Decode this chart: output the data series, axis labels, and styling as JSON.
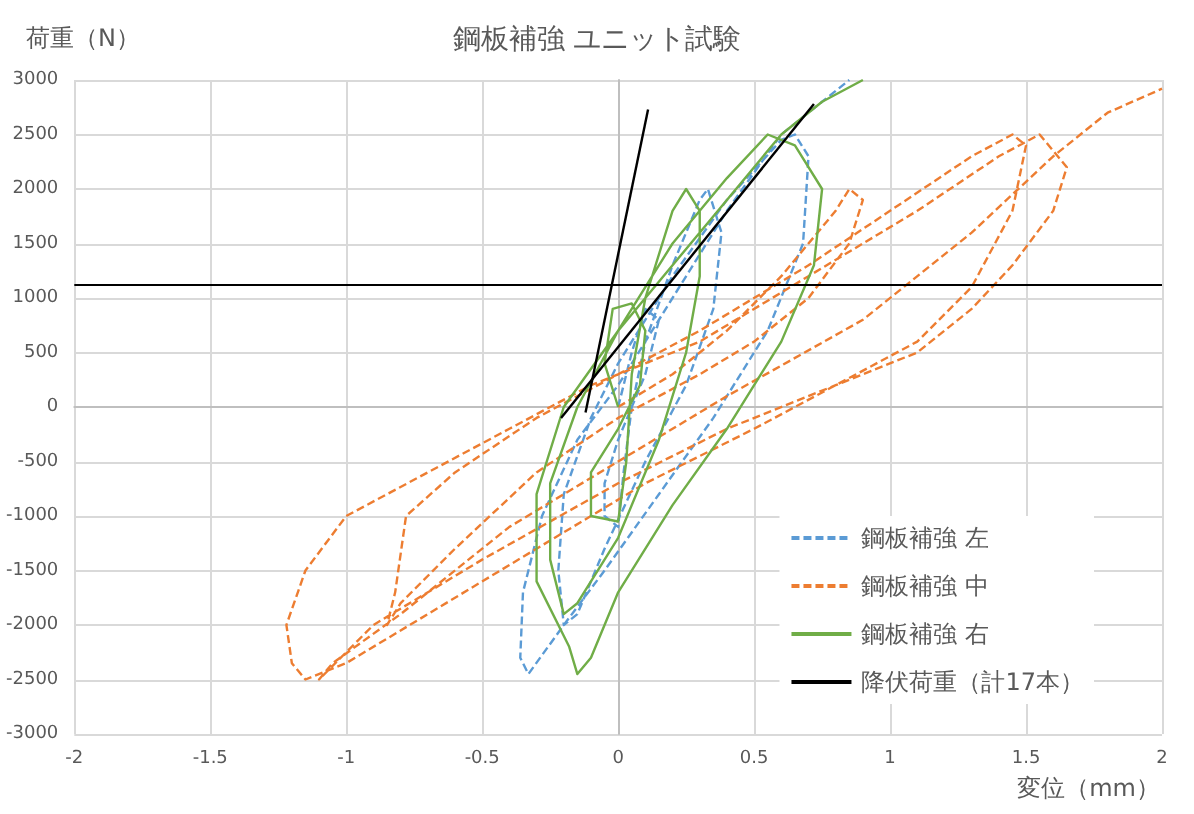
{
  "chart_data": {
    "type": "line",
    "title": "鋼板補強 ユニット試験",
    "xlabel": "変位（mm）",
    "ylabel": "荷重（N）",
    "xlim": [
      -2,
      2
    ],
    "xticks": [
      -2,
      -1.5,
      -1,
      -0.5,
      0,
      0.5,
      1,
      1.5,
      2
    ],
    "ylim": [
      -3000,
      3000
    ],
    "yticks": [
      -3000,
      -2500,
      -2000,
      -1500,
      -1000,
      -500,
      0,
      500,
      1000,
      1500,
      2000,
      2500,
      3000
    ],
    "grid": true,
    "legend": "bottom right",
    "marker": "none",
    "ref_lines": [
      {
        "axis": "y",
        "value": 1120,
        "color": "#000000"
      }
    ],
    "series": [
      {
        "name": "鋼板補強 左",
        "color": "#5b9bd5",
        "line_style": "dashed",
        "x": [
          0,
          0.05,
          0.1,
          0.15,
          0.1,
          0.0,
          -0.05,
          -0.05,
          0,
          0.02,
          0.05,
          0.1,
          0.2,
          0.3,
          0.33,
          0.38,
          0.35,
          0.25,
          0.1,
          -0.05,
          -0.15,
          -0.2,
          -0.22,
          -0.2,
          -0.1,
          0,
          0.2,
          0.4,
          0.6,
          0.65,
          0.7,
          0.68,
          0.55,
          0.35,
          0.15,
          -0.05,
          -0.2,
          -0.33,
          -0.36,
          -0.35,
          -0.28,
          -0.15,
          0,
          0.2,
          0.4,
          0.6,
          0.75,
          0.85
        ],
        "values": [
          0,
          500,
          900,
          800,
          300,
          -300,
          -700,
          -1000,
          -1100,
          -600,
          0,
          600,
          1300,
          1900,
          2000,
          1600,
          900,
          200,
          -500,
          -1300,
          -1900,
          -2000,
          -1500,
          -800,
          -100,
          400,
          1200,
          1900,
          2450,
          2500,
          2300,
          1500,
          700,
          -100,
          -800,
          -1500,
          -2000,
          -2450,
          -2300,
          -1700,
          -1000,
          -300,
          200,
          1000,
          1800,
          2500,
          2800,
          3000
        ]
      },
      {
        "name": "鋼板補強 中",
        "color": "#ed7d31",
        "line_style": "dashed",
        "x": [
          0,
          0.2,
          0.4,
          0.6,
          0.8,
          0.85,
          0.9,
          0.85,
          0.7,
          0.5,
          0.3,
          0,
          -0.3,
          -0.6,
          -0.8,
          -0.85,
          -0.82,
          -0.78,
          -0.6,
          -0.3,
          0,
          0.3,
          0.7,
          1.0,
          1.3,
          1.45,
          1.5,
          1.45,
          1.3,
          1.1,
          0.8,
          0.5,
          0.1,
          -0.3,
          -0.7,
          -1.0,
          -1.15,
          -1.2,
          -1.22,
          -1.15,
          -1.0,
          -0.7,
          -0.4,
          -0.1,
          0.3,
          0.7,
          1.1,
          1.4,
          1.55,
          1.65,
          1.6,
          1.45,
          1.3,
          1.1,
          0.8,
          0.4,
          0,
          -0.5,
          -0.9,
          -1.1,
          -1.05,
          -0.8,
          -0.4,
          0,
          0.4,
          0.9,
          1.3,
          1.6,
          1.8,
          2.0
        ],
        "values": [
          0,
          300,
          700,
          1200,
          1800,
          2000,
          1900,
          1500,
          1000,
          600,
          300,
          -100,
          -600,
          -1300,
          -1800,
          -2000,
          -1700,
          -1000,
          -600,
          -100,
          300,
          700,
          1300,
          1800,
          2300,
          2500,
          2400,
          1800,
          1100,
          600,
          200,
          -200,
          -700,
          -1300,
          -1900,
          -2350,
          -2500,
          -2350,
          -2000,
          -1500,
          -1000,
          -600,
          -200,
          200,
          600,
          1200,
          1800,
          2300,
          2500,
          2200,
          1800,
          1300,
          900,
          500,
          200,
          -200,
          -700,
          -1400,
          -2000,
          -2500,
          -2350,
          -1900,
          -1100,
          -500,
          100,
          800,
          1600,
          2300,
          2700,
          2920
        ]
      },
      {
        "name": "鋼板補強 右",
        "color": "#70ad47",
        "line_style": "solid",
        "x": [
          0,
          -0.05,
          -0.02,
          0.05,
          0.1,
          0.08,
          0.0,
          -0.1,
          -0.1,
          0.0,
          0.03,
          0.05,
          0.1,
          0.2,
          0.25,
          0.3,
          0.3,
          0.25,
          0.15,
          0.0,
          -0.15,
          -0.2,
          -0.25,
          -0.25,
          -0.15,
          0,
          0.2,
          0.4,
          0.55,
          0.65,
          0.75,
          0.72,
          0.6,
          0.4,
          0.2,
          0,
          -0.1,
          -0.15,
          -0.18,
          -0.3,
          -0.3,
          -0.2,
          0,
          0.2,
          0.4,
          0.6,
          0.75,
          0.9
        ],
        "values": [
          0,
          400,
          900,
          950,
          700,
          200,
          -200,
          -600,
          -1000,
          -1050,
          -500,
          300,
          1000,
          1800,
          2000,
          1800,
          1200,
          500,
          -300,
          -1200,
          -1800,
          -1900,
          -1400,
          -700,
          0,
          700,
          1500,
          2100,
          2500,
          2400,
          2000,
          1300,
          600,
          -200,
          -900,
          -1700,
          -2300,
          -2450,
          -2200,
          -1600,
          -800,
          0,
          700,
          1300,
          1900,
          2500,
          2800,
          3000
        ]
      },
      {
        "name": "降伏荷重（計17本）",
        "color": "#000000",
        "line_style": "solid",
        "x": [
          -0.12,
          0.11
        ],
        "values": [
          -50,
          2730
        ]
      },
      {
        "color": "#000000",
        "line_style": "solid",
        "x": [
          -0.21,
          0.72
        ],
        "values": [
          -100,
          2780
        ]
      }
    ]
  }
}
